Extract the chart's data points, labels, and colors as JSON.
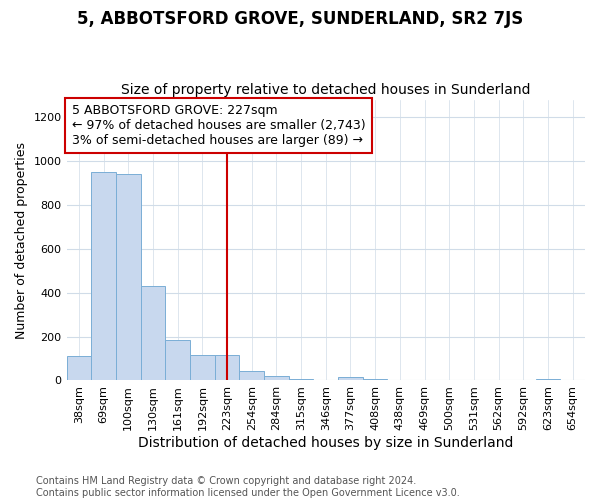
{
  "title": "5, ABBOTSFORD GROVE, SUNDERLAND, SR2 7JS",
  "subtitle": "Size of property relative to detached houses in Sunderland",
  "xlabel": "Distribution of detached houses by size in Sunderland",
  "ylabel": "Number of detached properties",
  "categories": [
    "38sqm",
    "69sqm",
    "100sqm",
    "130sqm",
    "161sqm",
    "192sqm",
    "223sqm",
    "254sqm",
    "284sqm",
    "315sqm",
    "346sqm",
    "377sqm",
    "408sqm",
    "438sqm",
    "469sqm",
    "500sqm",
    "531sqm",
    "562sqm",
    "592sqm",
    "623sqm",
    "654sqm"
  ],
  "values": [
    110,
    950,
    940,
    430,
    185,
    115,
    115,
    45,
    20,
    5,
    0,
    15,
    5,
    0,
    0,
    0,
    0,
    0,
    0,
    8,
    0
  ],
  "bar_color": "#c8d8ee",
  "bar_edge_color": "#7aaed6",
  "red_line_index": 6,
  "annotation_line1": "5 ABBOTSFORD GROVE: 227sqm",
  "annotation_line2": "← 97% of detached houses are smaller (2,743)",
  "annotation_line3": "3% of semi-detached houses are larger (89) →",
  "annotation_box_facecolor": "#ffffff",
  "annotation_box_edgecolor": "#cc0000",
  "red_line_color": "#cc0000",
  "title_fontsize": 12,
  "subtitle_fontsize": 10,
  "ylabel_fontsize": 9,
  "xlabel_fontsize": 10,
  "annotation_fontsize": 9,
  "tick_fontsize": 8,
  "footer_text": "Contains HM Land Registry data © Crown copyright and database right 2024.\nContains public sector information licensed under the Open Government Licence v3.0.",
  "footer_fontsize": 7,
  "bg_color": "#ffffff",
  "grid_color": "#d0dce8",
  "ylim": [
    0,
    1280
  ]
}
